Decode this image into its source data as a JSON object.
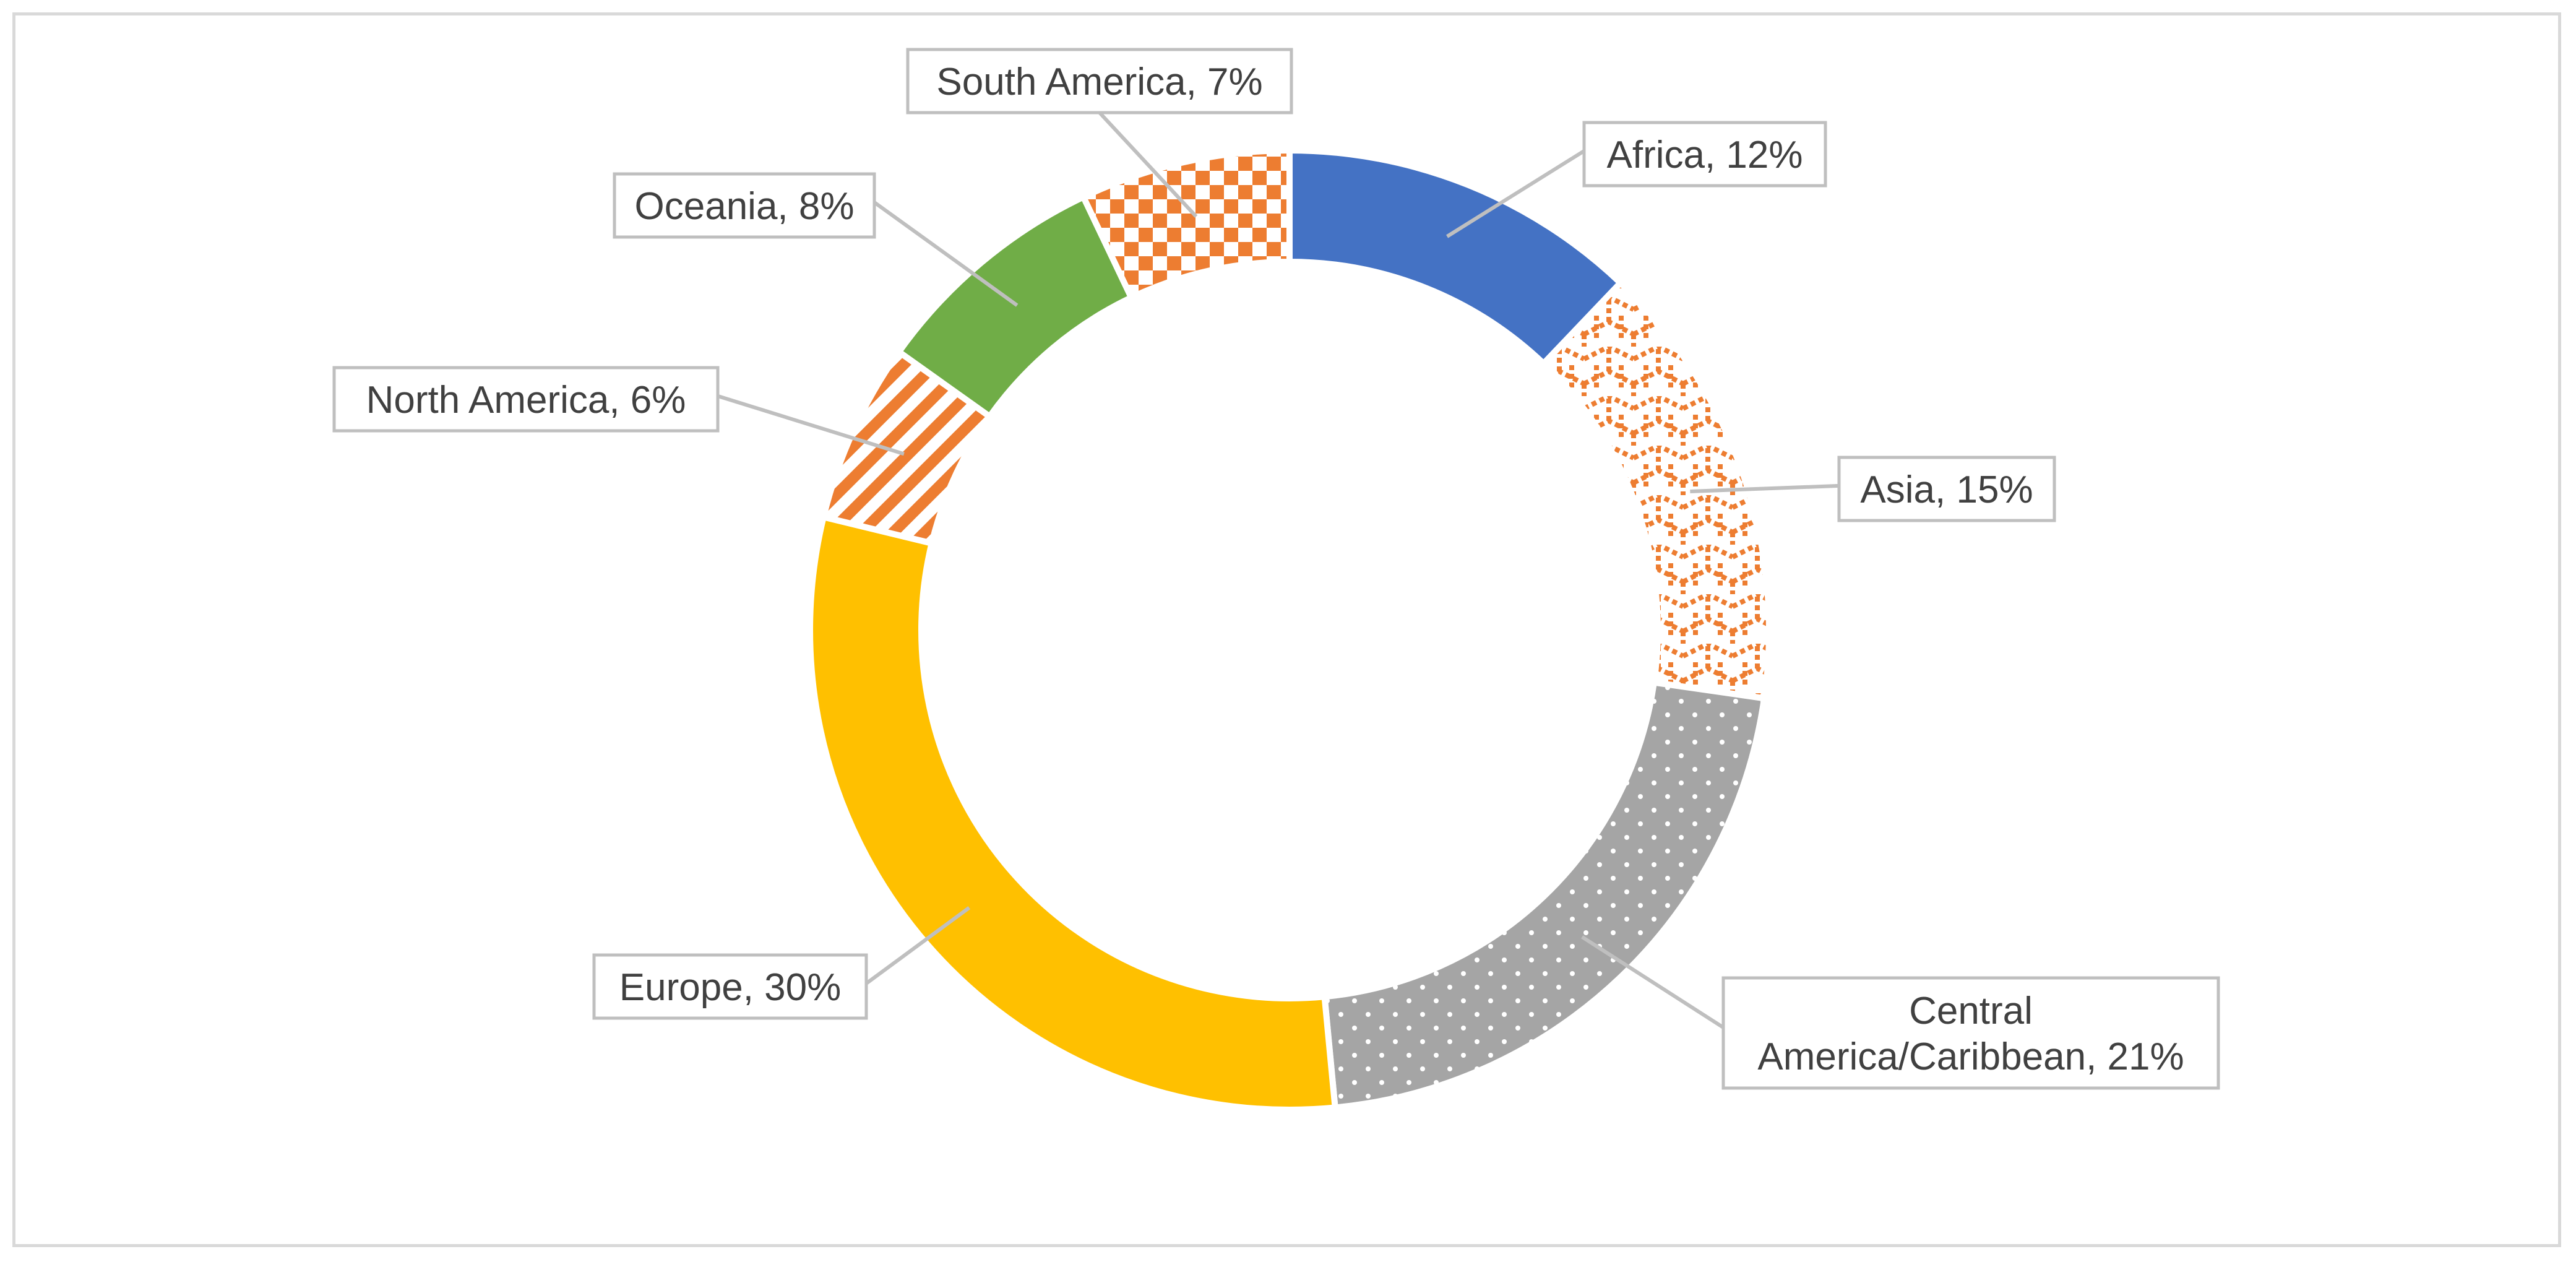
{
  "chart_data": {
    "type": "pie",
    "variant": "donut",
    "title": "",
    "legend": "none",
    "slices": [
      {
        "name": "Africa",
        "value": 12,
        "label": "Africa, 12%",
        "fill": "solid",
        "color": "#4472c4"
      },
      {
        "name": "Asia",
        "value": 15,
        "label": "Asia, 15%",
        "fill": "brick-pattern",
        "color": "#ed7d31"
      },
      {
        "name": "Central America/Caribbean",
        "value": 21,
        "label": "Central America/Caribbean, 21%",
        "label_lines": [
          "Central",
          "America/Caribbean, 21%"
        ],
        "fill": "dotted-pattern",
        "color": "#a5a5a5"
      },
      {
        "name": "Europe",
        "value": 30,
        "label": "Europe, 30%",
        "fill": "solid",
        "color": "#ffc000"
      },
      {
        "name": "North America",
        "value": 6,
        "label": "North America, 6%",
        "fill": "diagonal-stripe-pattern",
        "color": "#ed7d31"
      },
      {
        "name": "Oceania",
        "value": 8,
        "label": "Oceania, 8%",
        "fill": "solid",
        "color": "#70ad47"
      },
      {
        "name": "South America",
        "value": 7,
        "label": "South America, 7%",
        "fill": "checker-pattern",
        "color": "#ed7d31"
      }
    ]
  }
}
